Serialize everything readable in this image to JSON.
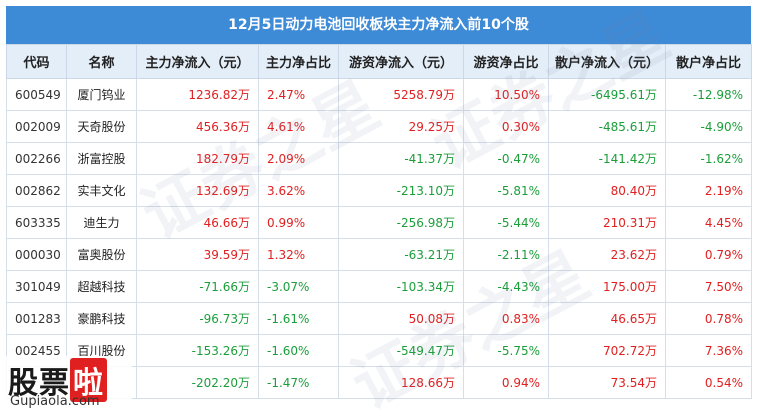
{
  "title": "12月5日动力电池回收板块主力净流入前10个股",
  "headers": [
    "代码",
    "名称",
    "主力净流入（元）",
    "主力净占比",
    "游资净流入（元）",
    "游资净占比",
    "散户净流入（元）",
    "散户净占比"
  ],
  "rows": [
    {
      "code": "600549",
      "name": "厦门钨业",
      "main_in": "1236.82万",
      "main_pct": "2.47%",
      "hot_in": "5258.79万",
      "hot_pct": "10.50%",
      "retail_in": "-6495.61万",
      "retail_pct": "-12.98%"
    },
    {
      "code": "002009",
      "name": "天奇股份",
      "main_in": "456.36万",
      "main_pct": "4.61%",
      "hot_in": "29.25万",
      "hot_pct": "0.30%",
      "retail_in": "-485.61万",
      "retail_pct": "-4.90%"
    },
    {
      "code": "002266",
      "name": "浙富控股",
      "main_in": "182.79万",
      "main_pct": "2.09%",
      "hot_in": "-41.37万",
      "hot_pct": "-0.47%",
      "retail_in": "-141.42万",
      "retail_pct": "-1.62%"
    },
    {
      "code": "002862",
      "name": "实丰文化",
      "main_in": "132.69万",
      "main_pct": "3.62%",
      "hot_in": "-213.10万",
      "hot_pct": "-5.81%",
      "retail_in": "80.40万",
      "retail_pct": "2.19%"
    },
    {
      "code": "603335",
      "name": "迪生力",
      "main_in": "46.66万",
      "main_pct": "0.99%",
      "hot_in": "-256.98万",
      "hot_pct": "-5.44%",
      "retail_in": "210.31万",
      "retail_pct": "4.45%"
    },
    {
      "code": "000030",
      "name": "富奥股份",
      "main_in": "39.59万",
      "main_pct": "1.32%",
      "hot_in": "-63.21万",
      "hot_pct": "-2.11%",
      "retail_in": "23.62万",
      "retail_pct": "0.79%"
    },
    {
      "code": "301049",
      "name": "超越科技",
      "main_in": "-71.66万",
      "main_pct": "-3.07%",
      "hot_in": "-103.34万",
      "hot_pct": "-4.43%",
      "retail_in": "175.00万",
      "retail_pct": "7.50%"
    },
    {
      "code": "001283",
      "name": "豪鹏科技",
      "main_in": "-96.73万",
      "main_pct": "-1.61%",
      "hot_in": "50.08万",
      "hot_pct": "0.83%",
      "retail_in": "46.65万",
      "retail_pct": "0.78%"
    },
    {
      "code": "002455",
      "name": "百川股份",
      "main_in": "-153.26万",
      "main_pct": "-1.60%",
      "hot_in": "-549.47万",
      "hot_pct": "-5.75%",
      "retail_in": "702.72万",
      "retail_pct": "7.36%"
    },
    {
      "code": "",
      "name": "",
      "main_in": "-202.20万",
      "main_pct": "-1.47%",
      "hot_in": "128.66万",
      "hot_pct": "0.94%",
      "retail_in": "73.54万",
      "retail_pct": "0.54%"
    }
  ],
  "watermarks": [
    "证券之星",
    "证券之星",
    "证券之星"
  ],
  "logo": {
    "cn_left": "股票",
    "cn_box": "啦",
    "en": "Gupiaola.com"
  },
  "colors": {
    "header_bg": "#3d8ad6",
    "positive": "#e02020",
    "negative": "#1b9e3a"
  }
}
